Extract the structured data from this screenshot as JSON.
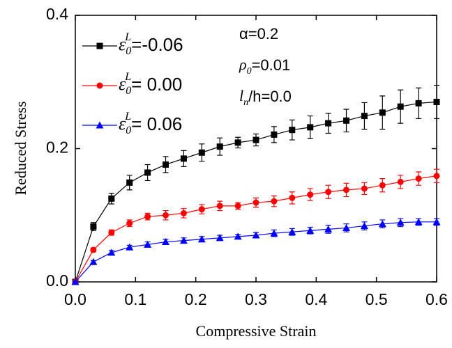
{
  "chart_data": {
    "type": "line",
    "xlabel": "Compressive Strain",
    "ylabel": "Reduced Stress",
    "x": [
      0,
      0.03,
      0.06,
      0.09,
      0.12,
      0.15,
      0.18,
      0.21,
      0.24,
      0.27,
      0.3,
      0.33,
      0.36,
      0.39,
      0.42,
      0.45,
      0.48,
      0.51,
      0.54,
      0.57,
      0.6
    ],
    "legend_symbol": {
      "base": "ε",
      "sub": "0",
      "sup": "L"
    },
    "series": [
      {
        "name": "=-0.06",
        "color": "#000000",
        "marker": "square",
        "values": [
          0,
          0.083,
          0.125,
          0.149,
          0.164,
          0.176,
          0.185,
          0.194,
          0.203,
          0.209,
          0.213,
          0.221,
          0.228,
          0.232,
          0.238,
          0.242,
          0.249,
          0.254,
          0.263,
          0.268,
          0.27
        ],
        "errors": [
          0,
          0.006,
          0.008,
          0.011,
          0.012,
          0.012,
          0.012,
          0.013,
          0.013,
          0.008,
          0.009,
          0.012,
          0.015,
          0.017,
          0.015,
          0.017,
          0.02,
          0.025,
          0.025,
          0.023,
          0.025
        ]
      },
      {
        "name": "= 0.00",
        "color": "#ff0000",
        "marker": "circle",
        "values": [
          0,
          0.048,
          0.074,
          0.088,
          0.098,
          0.1,
          0.103,
          0.109,
          0.114,
          0.114,
          0.119,
          0.121,
          0.126,
          0.131,
          0.135,
          0.138,
          0.14,
          0.145,
          0.15,
          0.155,
          0.159
        ],
        "errors": [
          0,
          0.003,
          0.004,
          0.005,
          0.005,
          0.007,
          0.007,
          0.007,
          0.007,
          0.005,
          0.007,
          0.008,
          0.009,
          0.009,
          0.01,
          0.01,
          0.009,
          0.01,
          0.01,
          0.01,
          0.01
        ]
      },
      {
        "name": "= 0.06",
        "color": "#0000ff",
        "marker": "triangle",
        "values": [
          0,
          0.03,
          0.044,
          0.052,
          0.056,
          0.06,
          0.062,
          0.064,
          0.066,
          0.068,
          0.07,
          0.073,
          0.075,
          0.077,
          0.079,
          0.081,
          0.084,
          0.087,
          0.089,
          0.09,
          0.09
        ],
        "errors": [
          0,
          0.002,
          0.003,
          0.003,
          0.004,
          0.004,
          0.004,
          0.004,
          0.004,
          0.003,
          0.004,
          0.005,
          0.005,
          0.005,
          0.006,
          0.006,
          0.006,
          0.006,
          0.006,
          0.005,
          0.005
        ]
      }
    ],
    "annotations": [
      {
        "base": "α=0.2"
      },
      {
        "base": "ρ",
        "sub": "0",
        "rest": "=0.01"
      },
      {
        "base": "l",
        "sub": "n",
        "rest": "/h=0.0"
      }
    ],
    "xlim": [
      0,
      0.6
    ],
    "xticks": [
      {
        "value": 0,
        "label": "0.0"
      },
      0.1,
      0.2,
      0.3,
      0.4,
      0.5,
      0.6
    ],
    "ylim": [
      0,
      0.4
    ],
    "yticks": [
      {
        "value": 0,
        "label": "0.0"
      },
      0.2,
      0.4
    ],
    "grid": false,
    "legend": "upper left"
  }
}
